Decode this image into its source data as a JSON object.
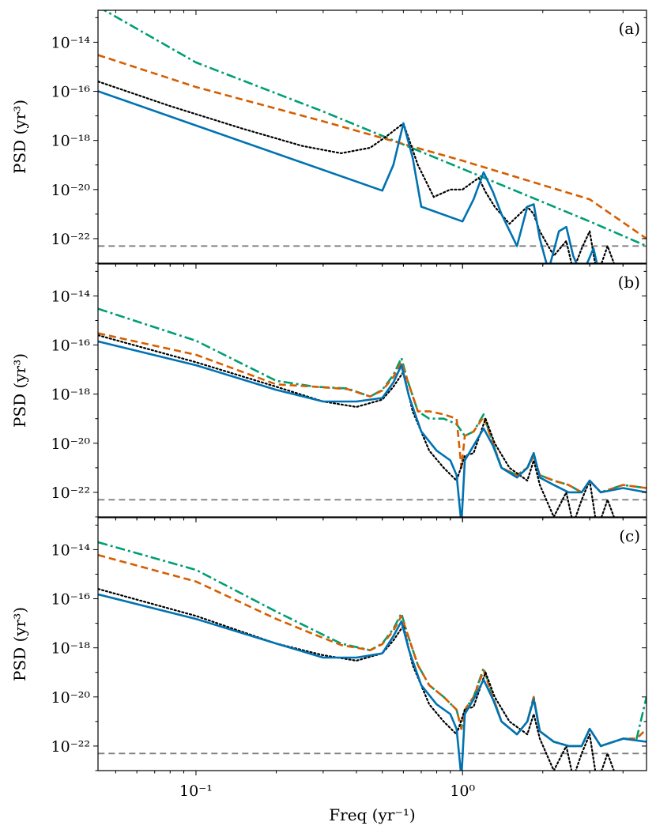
{
  "chart_data": {
    "type": "line",
    "xlabel": "Freq (yr⁻¹)",
    "ylabel": "PSD (yr³)",
    "xscale": "log",
    "yscale": "log",
    "xlim": [
      0.0429,
      4.9
    ],
    "ylim": [
      1e-23,
      2e-13
    ],
    "x_ticks": [
      "10⁻¹",
      "10⁰"
    ],
    "y_ticks": [
      "10⁻²²",
      "10⁻²⁰",
      "10⁻¹⁸",
      "10⁻¹⁶",
      "10⁻¹⁴"
    ],
    "sharex": true,
    "grid": false,
    "legend": "none",
    "colors": {
      "blue_solid": "#0072b2",
      "black_dotted": "#000000",
      "orange_dashed": "#d55e00",
      "green_dashdot": "#009e73",
      "gray_dashed": "#808080"
    },
    "panels": [
      {
        "label": "(a)",
        "series": [
          {
            "style": "green_dashdot",
            "x": [
              0.043,
              0.1,
              0.3,
              1.0,
              3.0,
              4.9
            ],
            "y": [
              2.8e-13,
              1.5e-15,
              1.5e-17,
              7e-20,
              5e-22,
              5e-23
            ]
          },
          {
            "style": "orange_dashed",
            "x": [
              0.043,
              0.1,
              0.3,
              1.0,
              3.0,
              4.9
            ],
            "y": [
              3e-15,
              1.5e-16,
              6e-18,
              1.5e-19,
              4e-21,
              1e-22
            ]
          },
          {
            "style": "black_dotted",
            "x": [
              0.043,
              0.08,
              0.15,
              0.25,
              0.35,
              0.45,
              0.52,
              0.6,
              0.68,
              0.78,
              0.9,
              1.0,
              1.15,
              1.22,
              1.32,
              1.5,
              1.75,
              1.85,
              1.95,
              2.2,
              2.45,
              2.6,
              2.8,
              3.0,
              3.2,
              3.5,
              4.0
            ],
            "y": [
              2.5e-16,
              2.5e-17,
              3e-18,
              6e-19,
              3e-19,
              5e-19,
              1.5e-18,
              5e-18,
              1e-19,
              5e-21,
              1e-20,
              1e-20,
              3e-20,
              8e-21,
              2e-21,
              4e-22,
              2e-21,
              1e-21,
              2e-22,
              2e-23,
              8e-23,
              5e-24,
              4e-23,
              2e-22,
              3e-24,
              5e-23,
              1e-24
            ]
          },
          {
            "style": "blue_solid",
            "x": [
              0.043,
              0.5,
              0.55,
              0.6,
              0.65,
              0.7,
              1.0,
              1.1,
              1.2,
              1.3,
              1.4,
              1.6,
              1.75,
              1.85,
              1.95,
              2.1,
              2.3,
              2.45,
              2.6,
              2.8,
              3.1,
              3.3
            ],
            "y": [
              1e-16,
              9e-21,
              1e-19,
              5e-18,
              2e-19,
              2e-21,
              5e-22,
              4e-21,
              5e-20,
              8e-21,
              1e-21,
              5e-23,
              2e-21,
              2.5e-21,
              1e-22,
              5e-24,
              2e-22,
              3e-22,
              2e-23,
              3e-24,
              4e-23,
              2e-24
            ]
          },
          {
            "style": "gray_dashed",
            "x": [
              0.043,
              4.9
            ],
            "y": [
              5e-23,
              5e-23
            ]
          }
        ]
      },
      {
        "label": "(b)",
        "series": [
          {
            "style": "green_dashdot",
            "x": [
              0.043,
              0.1,
              0.2,
              0.28,
              0.37,
              0.45,
              0.5,
              0.55,
              0.59,
              0.62,
              0.68,
              0.75,
              0.85,
              0.95,
              1.02,
              1.1,
              1.2,
              1.3,
              1.4,
              1.6,
              1.75,
              1.85,
              1.95,
              2.2,
              2.5,
              2.8,
              3.0,
              3.3,
              4.0,
              4.9
            ],
            "y": [
              3e-15,
              1.5e-16,
              3.5e-18,
              2e-18,
              1.7e-18,
              8e-19,
              1.5e-18,
              6e-18,
              3e-17,
              4e-18,
              2e-19,
              1e-19,
              1e-19,
              6e-20,
              2e-20,
              3e-20,
              1.5e-19,
              1e-20,
              1e-21,
              5e-22,
              1e-21,
              3e-21,
              5e-22,
              3e-22,
              2e-22,
              1e-22,
              3e-22,
              1e-22,
              2e-22,
              1.5e-22
            ]
          },
          {
            "style": "orange_dashed",
            "x": [
              0.043,
              0.1,
              0.2,
              0.28,
              0.37,
              0.45,
              0.5,
              0.55,
              0.59,
              0.62,
              0.68,
              0.75,
              0.85,
              0.95,
              0.99,
              1.02,
              1.1,
              1.2,
              1.3,
              1.4,
              1.6,
              1.75,
              1.85,
              1.95,
              2.2,
              2.5,
              2.8,
              3.0,
              3.3,
              4.0,
              4.9
            ],
            "y": [
              3e-16,
              4e-17,
              2.5e-18,
              2e-18,
              1.6e-18,
              8e-19,
              1.4e-18,
              5e-18,
              2e-17,
              4e-18,
              2e-19,
              2e-19,
              1.5e-19,
              1e-19,
              1e-21,
              2e-20,
              3e-20,
              1.2e-19,
              1e-20,
              1e-21,
              5e-22,
              1e-21,
              3e-21,
              5e-22,
              3e-22,
              2e-22,
              1e-22,
              3e-22,
              1e-22,
              2e-22,
              1.5e-22
            ]
          },
          {
            "style": "black_dotted",
            "x": [
              0.043,
              0.1,
              0.2,
              0.3,
              0.4,
              0.5,
              0.55,
              0.6,
              0.65,
              0.75,
              0.85,
              0.95,
              1.02,
              1.1,
              1.22,
              1.32,
              1.5,
              1.75,
              1.85,
              1.95,
              2.2,
              2.45,
              2.6,
              2.8,
              3.0,
              3.2,
              3.5,
              4.0
            ],
            "y": [
              2.5e-16,
              2e-17,
              2e-18,
              5e-19,
              3e-19,
              6e-19,
              2e-18,
              8e-18,
              2e-19,
              5e-21,
              1e-21,
              3e-22,
              3e-21,
              4e-21,
              1e-19,
              1e-20,
              1e-21,
              3e-22,
              2e-21,
              2e-22,
              1e-23,
              1e-22,
              5e-24,
              5e-23,
              3e-22,
              3e-24,
              5e-23,
              1e-24
            ]
          },
          {
            "style": "blue_solid",
            "x": [
              0.043,
              0.1,
              0.2,
              0.3,
              0.4,
              0.5,
              0.55,
              0.59,
              0.63,
              0.7,
              0.8,
              0.9,
              0.95,
              0.99,
              1.02,
              1.1,
              1.2,
              1.3,
              1.4,
              1.6,
              1.75,
              1.85,
              1.95,
              2.2,
              2.5,
              2.8,
              3.0,
              3.3,
              4.0,
              4.9
            ],
            "y": [
              1.4e-16,
              1.5e-17,
              1.5e-18,
              5e-19,
              5e-19,
              7e-19,
              3e-18,
              1.5e-17,
              8e-19,
              3e-20,
              5e-21,
              2e-21,
              5e-22,
              5e-24,
              2e-21,
              8e-21,
              4e-20,
              8e-21,
              1e-21,
              4e-22,
              1e-21,
              4e-21,
              4e-22,
              2e-22,
              1e-22,
              1e-22,
              3e-22,
              1e-22,
              1.5e-22,
              1e-22
            ]
          },
          {
            "style": "gray_dashed",
            "x": [
              0.043,
              4.9
            ],
            "y": [
              5e-23,
              5e-23
            ]
          }
        ]
      },
      {
        "label": "(c)",
        "series": [
          {
            "style": "green_dashdot",
            "x": [
              0.043,
              0.1,
              0.2,
              0.27,
              0.35,
              0.45,
              0.5,
              0.55,
              0.59,
              0.62,
              0.68,
              0.75,
              0.85,
              0.95,
              0.99,
              1.02,
              1.1,
              1.2,
              1.3,
              1.4,
              1.6,
              1.75,
              1.85,
              1.95,
              2.2,
              2.5,
              2.8,
              3.0,
              3.3,
              4.0,
              4.5,
              4.9
            ],
            "y": [
              2e-14,
              1.5e-15,
              3e-17,
              6e-18,
              1.5e-18,
              8e-19,
              1.5e-18,
              6e-18,
              2.5e-17,
              4e-18,
              2e-19,
              3e-20,
              1e-20,
              3e-21,
              5e-22,
              3e-21,
              1e-20,
              1.5e-19,
              1e-20,
              1e-21,
              3e-22,
              1e-21,
              1e-20,
              4e-22,
              1.5e-22,
              1e-22,
              1e-22,
              5e-22,
              1e-22,
              2e-22,
              2e-22,
              1e-20
            ]
          },
          {
            "style": "orange_dashed",
            "x": [
              0.043,
              0.1,
              0.2,
              0.27,
              0.35,
              0.45,
              0.5,
              0.55,
              0.59,
              0.62,
              0.68,
              0.75,
              0.85,
              0.95,
              0.99,
              1.02,
              1.1,
              1.2,
              1.3,
              1.4,
              1.6,
              1.75,
              1.85,
              1.95,
              2.2,
              2.5,
              2.8,
              3.0,
              3.3,
              4.0,
              4.5,
              4.9
            ],
            "y": [
              6e-15,
              5e-16,
              1.5e-17,
              4e-18,
              1.3e-18,
              8e-19,
              1.4e-18,
              5e-18,
              2e-17,
              4e-18,
              2e-19,
              3e-20,
              1e-20,
              3e-21,
              5e-22,
              3e-21,
              1e-20,
              1.2e-19,
              1e-20,
              1e-21,
              3e-22,
              1e-21,
              1e-20,
              4e-22,
              1.5e-22,
              1e-22,
              1e-22,
              5e-22,
              1e-22,
              2e-22,
              2e-22,
              5e-22
            ]
          },
          {
            "style": "black_dotted",
            "x": [
              0.043,
              0.1,
              0.2,
              0.3,
              0.4,
              0.5,
              0.55,
              0.6,
              0.65,
              0.75,
              0.85,
              0.95,
              1.02,
              1.1,
              1.22,
              1.32,
              1.5,
              1.75,
              1.85,
              1.95,
              2.2,
              2.45,
              2.6,
              2.8,
              3.0,
              3.2,
              3.5,
              4.0
            ],
            "y": [
              2.5e-16,
              2e-17,
              1.5e-18,
              5e-19,
              3e-19,
              6e-19,
              2e-18,
              8e-18,
              2e-19,
              5e-21,
              1e-21,
              3e-22,
              3e-21,
              4e-21,
              1e-19,
              1e-20,
              1e-21,
              3e-22,
              2e-21,
              2e-22,
              1e-23,
              1e-22,
              5e-24,
              5e-23,
              3e-22,
              3e-24,
              5e-23,
              1e-24
            ]
          },
          {
            "style": "blue_solid",
            "x": [
              0.043,
              0.1,
              0.2,
              0.3,
              0.4,
              0.5,
              0.55,
              0.59,
              0.63,
              0.7,
              0.8,
              0.9,
              0.95,
              0.99,
              1.02,
              1.1,
              1.2,
              1.3,
              1.4,
              1.6,
              1.75,
              1.85,
              1.95,
              2.2,
              2.5,
              2.8,
              3.0,
              3.3,
              4.0,
              4.9
            ],
            "y": [
              1.5e-16,
              1.5e-17,
              1.5e-18,
              4e-19,
              4e-19,
              6e-19,
              3e-18,
              1.2e-17,
              8e-19,
              3e-20,
              5e-21,
              2e-21,
              5e-22,
              5e-24,
              2e-21,
              8e-21,
              5e-20,
              8e-21,
              1e-21,
              3e-22,
              1e-21,
              8e-21,
              4e-22,
              1.5e-22,
              1e-22,
              1e-22,
              5e-22,
              1e-22,
              2e-22,
              1.5e-22
            ]
          },
          {
            "style": "gray_dashed",
            "x": [
              0.043,
              4.9
            ],
            "y": [
              5e-23,
              5e-23
            ]
          }
        ]
      }
    ]
  }
}
